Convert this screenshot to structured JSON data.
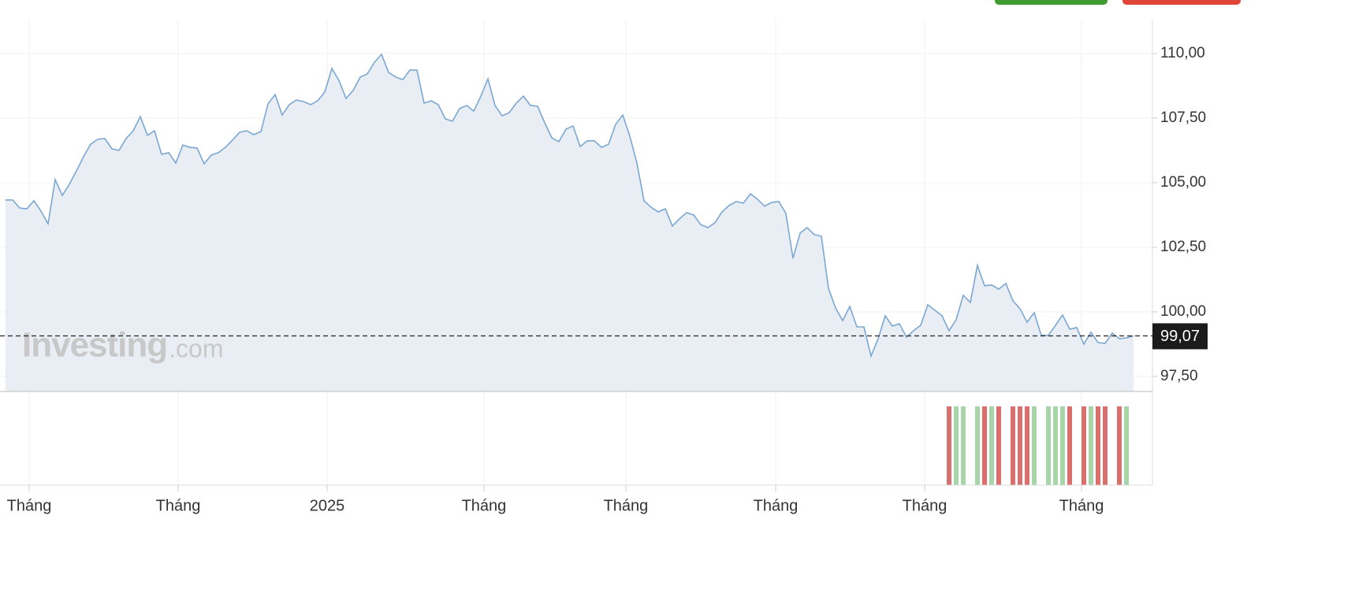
{
  "chart_data": {
    "type": "area",
    "color": "#7ba7d2",
    "fill": "#e9eef5",
    "values": [
      104.33,
      104.33,
      104.02,
      103.99,
      104.3,
      103.9,
      103.41,
      105.12,
      104.51,
      104.94,
      105.46,
      106.01,
      106.49,
      106.68,
      106.71,
      106.31,
      106.25,
      106.71,
      107.01,
      107.56,
      106.83,
      107.01,
      106.1,
      106.16,
      105.76,
      106.46,
      106.37,
      106.34,
      105.73,
      106.07,
      106.16,
      106.37,
      106.65,
      106.95,
      107.01,
      106.86,
      106.98,
      108.05,
      108.41,
      107.62,
      108.02,
      108.2,
      108.14,
      108.02,
      108.17,
      108.51,
      109.42,
      108.96,
      108.26,
      108.57,
      109.09,
      109.21,
      109.66,
      109.97,
      109.27,
      109.09,
      108.99,
      109.36,
      109.36,
      108.08,
      108.17,
      108.02,
      107.47,
      107.38,
      107.87,
      107.99,
      107.77,
      108.35,
      109.02,
      107.99,
      107.59,
      107.71,
      108.08,
      108.35,
      107.99,
      107.96,
      107.32,
      106.74,
      106.59,
      107.07,
      107.2,
      106.4,
      106.62,
      106.62,
      106.37,
      106.49,
      107.26,
      107.62,
      106.8,
      105.76,
      104.3,
      104.05,
      103.87,
      103.99,
      103.32,
      103.6,
      103.84,
      103.75,
      103.38,
      103.26,
      103.45,
      103.87,
      104.12,
      104.27,
      104.21,
      104.57,
      104.36,
      104.09,
      104.24,
      104.27,
      103.81,
      102.07,
      103.05,
      103.26,
      102.99,
      102.93,
      100.91,
      100.15,
      99.66,
      100.21,
      99.42,
      99.42,
      98.29,
      98.96,
      99.85,
      99.45,
      99.54,
      99.02,
      99.27,
      99.48,
      100.27,
      100.06,
      99.85,
      99.27,
      99.7,
      100.64,
      100.37,
      101.8,
      101.01,
      101.04,
      100.88,
      101.1,
      100.43,
      100.12,
      99.6,
      99.97,
      99.09,
      99.09,
      99.48,
      99.88,
      99.33,
      99.39,
      98.75,
      99.21,
      98.81,
      98.78,
      99.18,
      98.96,
      98.99,
      99.07
    ],
    "xlim": [
      0,
      159
    ],
    "xticks": [
      {
        "value": 3.33,
        "label": "Tháng"
      },
      {
        "value": 24.33,
        "label": "Tháng"
      },
      {
        "value": 45.33,
        "label": "2025"
      },
      {
        "value": 67.44,
        "label": "Tháng"
      },
      {
        "value": 87.44,
        "label": "Tháng"
      },
      {
        "value": 108.56,
        "label": "Tháng"
      },
      {
        "value": 129.56,
        "label": "Tháng"
      },
      {
        "value": 151.67,
        "label": "Tháng"
      }
    ],
    "ylim": [
      96.92,
      111.31
    ],
    "yticks": [
      {
        "value": 97.5,
        "label": "97,50"
      },
      {
        "value": 100,
        "label": "100,00"
      },
      {
        "value": 102.5,
        "label": "102,50"
      },
      {
        "value": 105,
        "label": "105,00"
      },
      {
        "value": 107.5,
        "label": "107,50"
      },
      {
        "value": 110,
        "label": "110,00"
      }
    ],
    "current_price": {
      "value": 99.07,
      "label": "99,07"
    },
    "grid": true,
    "watermark": "Investing",
    "watermark_suffix": ".com"
  }
}
